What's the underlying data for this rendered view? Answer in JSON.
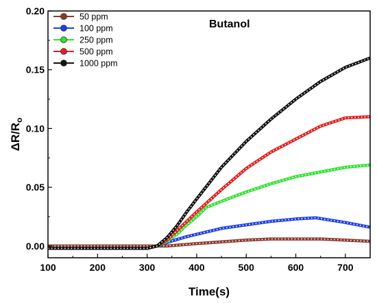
{
  "chart_data": {
    "type": "line",
    "title": "",
    "annotation": "Butanol",
    "xlabel": "Time(s)",
    "ylabel_main": "ΔR/R",
    "ylabel_sub": "o",
    "xlim": [
      100,
      750
    ],
    "ylim": [
      -0.01,
      0.2
    ],
    "x_ticks": [
      100,
      200,
      300,
      400,
      500,
      600,
      700
    ],
    "x_tick_labels": [
      "100",
      "200",
      "300",
      "400",
      "500",
      "600",
      "700"
    ],
    "y_ticks": [
      0.0,
      0.05,
      0.1,
      0.15,
      0.2
    ],
    "y_tick_labels": [
      "0.00",
      "0.05",
      "0.10",
      "0.15",
      "0.20"
    ],
    "legend_position": "top-left",
    "grid": false,
    "series": [
      {
        "name": "50 ppm",
        "color": "#8b3a2e",
        "x": [
          100,
          200,
          300,
          340,
          400,
          500,
          550,
          600,
          650,
          700,
          750
        ],
        "y": [
          0.0,
          0.0,
          0.0,
          0.0,
          0.002,
          0.005,
          0.006,
          0.006,
          0.006,
          0.005,
          0.004
        ]
      },
      {
        "name": "100 ppm",
        "color": "#1f3fe0",
        "x": [
          100,
          200,
          300,
          320,
          340,
          380,
          420,
          450,
          500,
          550,
          600,
          640,
          700,
          750
        ],
        "y": [
          -0.002,
          -0.002,
          -0.002,
          0.0,
          0.003,
          0.008,
          0.012,
          0.015,
          0.018,
          0.021,
          0.023,
          0.024,
          0.02,
          0.016
        ]
      },
      {
        "name": "250 ppm",
        "color": "#33e033",
        "x": [
          100,
          200,
          300,
          320,
          340,
          360,
          380,
          400,
          420,
          450,
          500,
          550,
          600,
          650,
          700,
          750
        ],
        "y": [
          -0.002,
          -0.002,
          -0.002,
          0.0,
          0.004,
          0.01,
          0.018,
          0.025,
          0.033,
          0.038,
          0.046,
          0.053,
          0.059,
          0.063,
          0.067,
          0.069
        ]
      },
      {
        "name": "500 ppm",
        "color": "#e02020",
        "x": [
          100,
          200,
          300,
          320,
          340,
          360,
          380,
          400,
          450,
          500,
          550,
          600,
          650,
          700,
          750
        ],
        "y": [
          -0.002,
          -0.002,
          -0.002,
          0.0,
          0.005,
          0.013,
          0.021,
          0.029,
          0.048,
          0.066,
          0.08,
          0.091,
          0.102,
          0.109,
          0.11
        ]
      },
      {
        "name": "1000 ppm",
        "color": "#111111",
        "x": [
          100,
          200,
          300,
          320,
          340,
          360,
          380,
          400,
          450,
          500,
          550,
          600,
          650,
          700,
          750
        ],
        "y": [
          -0.002,
          -0.002,
          -0.002,
          0.0,
          0.007,
          0.017,
          0.029,
          0.04,
          0.067,
          0.089,
          0.108,
          0.125,
          0.14,
          0.152,
          0.16
        ]
      }
    ]
  }
}
